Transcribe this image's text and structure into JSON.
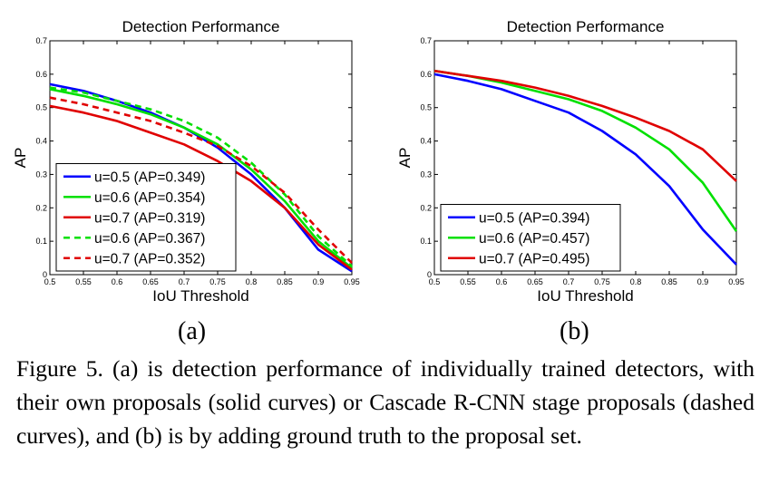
{
  "chart_data": [
    {
      "type": "line",
      "title": "Detection Performance",
      "xlabel": "IoU Threshold",
      "ylabel": "AP",
      "xlim": [
        0.5,
        0.95
      ],
      "ylim": [
        0,
        0.7
      ],
      "x_ticks": [
        "0.5",
        "0.55",
        "0.6",
        "0.65",
        "0.7",
        "0.75",
        "0.8",
        "0.85",
        "0.9",
        "0.95"
      ],
      "y_ticks": [
        "0",
        "0.1",
        "0.2",
        "0.3",
        "0.4",
        "0.5",
        "0.6",
        "0.7"
      ],
      "grid": false,
      "legend_position": "bottom-left",
      "x": [
        0.5,
        0.55,
        0.6,
        0.65,
        0.7,
        0.75,
        0.8,
        0.85,
        0.9,
        0.95
      ],
      "series": [
        {
          "name": "u=0.5 (AP=0.349)",
          "color": "#0000ff",
          "style": "solid",
          "values": [
            0.57,
            0.55,
            0.52,
            0.485,
            0.44,
            0.38,
            0.3,
            0.2,
            0.075,
            0.01
          ]
        },
        {
          "name": "u=0.6 (AP=0.354)",
          "color": "#00e000",
          "style": "solid",
          "values": [
            0.555,
            0.535,
            0.51,
            0.48,
            0.44,
            0.39,
            0.315,
            0.22,
            0.1,
            0.02
          ]
        },
        {
          "name": "u=0.7 (AP=0.319)",
          "color": "#e00000",
          "style": "solid",
          "values": [
            0.505,
            0.485,
            0.46,
            0.425,
            0.39,
            0.34,
            0.28,
            0.2,
            0.09,
            0.015
          ]
        },
        {
          "name": "u=0.6 (AP=0.367)",
          "color": "#00e000",
          "style": "dashed",
          "values": [
            0.56,
            0.545,
            0.52,
            0.495,
            0.46,
            0.41,
            0.335,
            0.24,
            0.115,
            0.025
          ]
        },
        {
          "name": "u=0.7 (AP=0.352)",
          "color": "#e00000",
          "style": "dashed",
          "values": [
            0.53,
            0.51,
            0.485,
            0.46,
            0.425,
            0.385,
            0.325,
            0.245,
            0.135,
            0.035
          ]
        }
      ]
    },
    {
      "type": "line",
      "title": "Detection Performance",
      "xlabel": "IoU Threshold",
      "ylabel": "AP",
      "xlim": [
        0.5,
        0.95
      ],
      "ylim": [
        0,
        0.7
      ],
      "x_ticks": [
        "0.5",
        "0.55",
        "0.6",
        "0.65",
        "0.7",
        "0.75",
        "0.8",
        "0.85",
        "0.9",
        "0.95"
      ],
      "y_ticks": [
        "0",
        "0.1",
        "0.2",
        "0.3",
        "0.4",
        "0.5",
        "0.6",
        "0.7"
      ],
      "grid": false,
      "legend_position": "bottom-left",
      "x": [
        0.5,
        0.55,
        0.6,
        0.65,
        0.7,
        0.75,
        0.8,
        0.85,
        0.9,
        0.95
      ],
      "series": [
        {
          "name": "u=0.5 (AP=0.394)",
          "color": "#0000ff",
          "style": "solid",
          "values": [
            0.6,
            0.58,
            0.555,
            0.52,
            0.485,
            0.43,
            0.36,
            0.265,
            0.135,
            0.03
          ]
        },
        {
          "name": "u=0.6 (AP=0.457)",
          "color": "#00e000",
          "style": "solid",
          "values": [
            0.61,
            0.595,
            0.575,
            0.55,
            0.525,
            0.49,
            0.44,
            0.375,
            0.275,
            0.13
          ]
        },
        {
          "name": "u=0.7 (AP=0.495)",
          "color": "#e00000",
          "style": "solid",
          "values": [
            0.61,
            0.595,
            0.58,
            0.56,
            0.535,
            0.505,
            0.47,
            0.43,
            0.375,
            0.28
          ]
        }
      ]
    }
  ],
  "labels": {
    "sub_a": "(a)",
    "sub_b": "(b)"
  },
  "caption": "Figure 5. (a) is detection performance of individually trained detectors, with their own proposals (solid curves) or Cascade R-CNN stage proposals (dashed curves), and (b) is by adding ground truth to the proposal set."
}
